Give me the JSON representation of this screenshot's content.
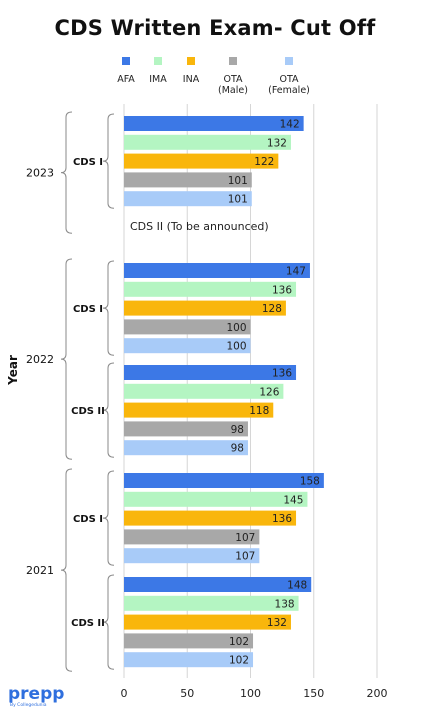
{
  "chart_data": {
    "type": "bar",
    "orientation": "horizontal",
    "title": "CDS Written Exam- Cut Off",
    "ylabel": "Year",
    "xlabel": "",
    "xlim": [
      0,
      200
    ],
    "xticks": [
      0,
      50,
      100,
      150,
      200
    ],
    "grid": true,
    "legend_position": "top",
    "series_names": [
      "AFA",
      "IMA",
      "INA",
      "OTA\n(Male)",
      "OTA\n(Female)"
    ],
    "series_colors": [
      "#3c78e6",
      "#b4f5c2",
      "#f9b60c",
      "#a8a8a8",
      "#a8cbf8"
    ],
    "groups": [
      {
        "year": "2023",
        "sessions": [
          {
            "session": "CDS I",
            "values": [
              142,
              132,
              122,
              101,
              101
            ]
          }
        ],
        "note": "CDS II (To be announced)"
      },
      {
        "year": "2022",
        "sessions": [
          {
            "session": "CDS I",
            "values": [
              147,
              136,
              128,
              100,
              100
            ]
          },
          {
            "session": "CDS II",
            "values": [
              136,
              126,
              118,
              98,
              98
            ]
          }
        ]
      },
      {
        "year": "2021",
        "sessions": [
          {
            "session": "CDS I",
            "values": [
              158,
              145,
              136,
              107,
              107
            ]
          },
          {
            "session": "CDS II",
            "values": [
              148,
              138,
              132,
              102,
              102
            ]
          }
        ]
      }
    ]
  },
  "branding": {
    "name": "prepp",
    "tagline": "By Collegedunia"
  }
}
